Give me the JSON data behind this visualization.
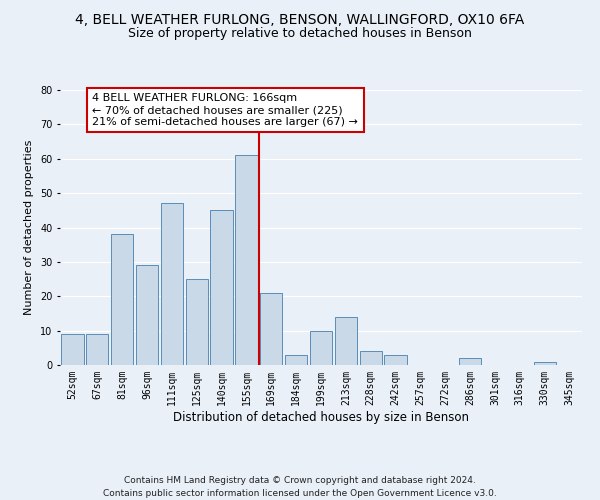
{
  "title": "4, BELL WEATHER FURLONG, BENSON, WALLINGFORD, OX10 6FA",
  "subtitle": "Size of property relative to detached houses in Benson",
  "xlabel": "Distribution of detached houses by size in Benson",
  "ylabel": "Number of detached properties",
  "bar_labels": [
    "52sqm",
    "67sqm",
    "81sqm",
    "96sqm",
    "111sqm",
    "125sqm",
    "140sqm",
    "155sqm",
    "169sqm",
    "184sqm",
    "199sqm",
    "213sqm",
    "228sqm",
    "242sqm",
    "257sqm",
    "272sqm",
    "286sqm",
    "301sqm",
    "316sqm",
    "330sqm",
    "345sqm"
  ],
  "bar_values": [
    9,
    9,
    38,
    29,
    47,
    25,
    45,
    61,
    21,
    3,
    10,
    14,
    4,
    3,
    0,
    0,
    2,
    0,
    0,
    1,
    0
  ],
  "bar_color": "#c9d9e8",
  "bar_edge_color": "#5b8db8",
  "vline_color": "#cc0000",
  "annotation_text": "4 BELL WEATHER FURLONG: 166sqm\n← 70% of detached houses are smaller (225)\n21% of semi-detached houses are larger (67) →",
  "annotation_box_color": "#cc0000",
  "ylim": [
    0,
    80
  ],
  "yticks": [
    0,
    10,
    20,
    30,
    40,
    50,
    60,
    70,
    80
  ],
  "footer_line1": "Contains HM Land Registry data © Crown copyright and database right 2024.",
  "footer_line2": "Contains public sector information licensed under the Open Government Licence v3.0.",
  "background_color": "#eaf0f8",
  "plot_background_color": "#eaf0f8",
  "grid_color": "#ffffff",
  "title_fontsize": 10,
  "subtitle_fontsize": 9,
  "xlabel_fontsize": 8.5,
  "ylabel_fontsize": 8,
  "tick_fontsize": 7,
  "annotation_fontsize": 8,
  "footer_fontsize": 6.5
}
